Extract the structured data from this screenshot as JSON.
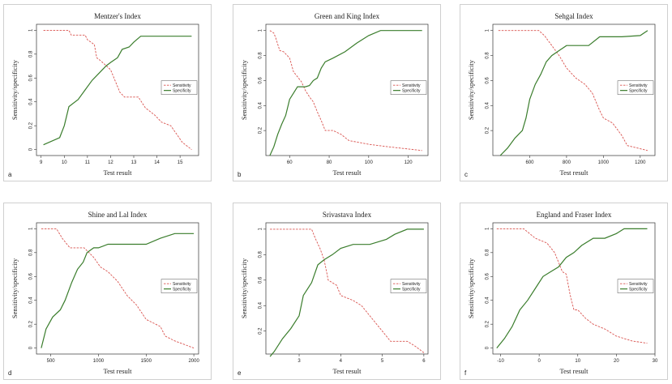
{
  "legend": {
    "sensitivity": "Sensitivity",
    "specificity": "Specificity"
  },
  "colors": {
    "sensitivity": "#d9534f",
    "specificity": "#3a7d2c"
  },
  "chart_data": [
    {
      "type": "line",
      "letter": "a",
      "title": "Mentzer's Index",
      "xlabel": "Test result",
      "ylabel": "Sensitivity/specificity",
      "xlim": [
        8.8,
        15.8
      ],
      "ylim": [
        -0.05,
        1.05
      ],
      "xticks": [
        9,
        10,
        11,
        12,
        13,
        14,
        15
      ],
      "yticks": [
        0,
        0.2,
        0.4,
        0.6,
        0.8,
        1
      ],
      "series": [
        {
          "name": "Sensitivity",
          "x": [
            9.1,
            10.2,
            10.3,
            10.9,
            11.0,
            11.3,
            11.4,
            11.6,
            12.0,
            12.4,
            12.6,
            13.2,
            13.5,
            13.9,
            14.2,
            14.6,
            15.1,
            15.5
          ],
          "y": [
            1.0,
            1.0,
            0.96,
            0.96,
            0.92,
            0.88,
            0.77,
            0.74,
            0.67,
            0.48,
            0.44,
            0.44,
            0.35,
            0.29,
            0.23,
            0.2,
            0.06,
            0.0
          ]
        },
        {
          "name": "Specificity",
          "x": [
            9.1,
            9.8,
            10.0,
            10.2,
            10.6,
            10.9,
            11.2,
            11.5,
            11.8,
            12.0,
            12.3,
            12.5,
            12.8,
            13.0,
            13.3,
            13.8,
            14.5,
            15.5
          ],
          "y": [
            0.04,
            0.1,
            0.2,
            0.36,
            0.42,
            0.5,
            0.58,
            0.64,
            0.7,
            0.73,
            0.77,
            0.84,
            0.86,
            0.9,
            0.95,
            0.95,
            0.95,
            0.95
          ]
        }
      ]
    },
    {
      "type": "line",
      "letter": "b",
      "title": "Green and King Index",
      "xlabel": "Test result",
      "ylabel": "Sensitivity/specificity",
      "xlim": [
        48,
        130
      ],
      "ylim": [
        0.0,
        1.05
      ],
      "xticks": [
        60,
        80,
        100,
        120
      ],
      "yticks": [
        0.2,
        0.4,
        0.6,
        0.8,
        1
      ],
      "series": [
        {
          "name": "Sensitivity",
          "x": [
            50,
            52,
            53,
            55,
            57,
            60,
            62,
            64,
            66,
            68,
            70,
            72,
            74,
            76,
            78,
            82,
            86,
            90,
            100,
            110,
            127
          ],
          "y": [
            1.0,
            0.98,
            0.94,
            0.84,
            0.83,
            0.78,
            0.67,
            0.63,
            0.59,
            0.52,
            0.47,
            0.43,
            0.35,
            0.28,
            0.2,
            0.2,
            0.17,
            0.12,
            0.09,
            0.07,
            0.04
          ]
        },
        {
          "name": "Specificity",
          "x": [
            50,
            52,
            54,
            56,
            58,
            60,
            62,
            64,
            66,
            68,
            70,
            72,
            74,
            76,
            78,
            82,
            88,
            94,
            100,
            106,
            127
          ],
          "y": [
            0.0,
            0.07,
            0.17,
            0.25,
            0.32,
            0.45,
            0.5,
            0.55,
            0.55,
            0.55,
            0.56,
            0.6,
            0.62,
            0.7,
            0.75,
            0.78,
            0.83,
            0.9,
            0.96,
            1.0,
            1.0
          ]
        }
      ]
    },
    {
      "type": "line",
      "letter": "c",
      "title": "Sehgal Index",
      "xlabel": "Test result",
      "ylabel": "Sensitivity/specificity",
      "xlim": [
        400,
        1280
      ],
      "ylim": [
        0.0,
        1.05
      ],
      "xticks": [
        600,
        800,
        1000,
        1200
      ],
      "yticks": [
        0.2,
        0.4,
        0.6,
        0.8,
        1
      ],
      "series": [
        {
          "name": "Sensitivity",
          "x": [
            430,
            650,
            680,
            700,
            730,
            760,
            800,
            850,
            900,
            940,
            980,
            1000,
            1050,
            1100,
            1130,
            1240
          ],
          "y": [
            1.0,
            1.0,
            0.96,
            0.92,
            0.86,
            0.8,
            0.7,
            0.62,
            0.57,
            0.5,
            0.36,
            0.3,
            0.26,
            0.16,
            0.08,
            0.04
          ]
        },
        {
          "name": "Specificity",
          "x": [
            440,
            480,
            520,
            560,
            580,
            600,
            630,
            660,
            690,
            720,
            760,
            800,
            860,
            920,
            980,
            1100,
            1200,
            1240
          ],
          "y": [
            0.0,
            0.06,
            0.14,
            0.2,
            0.3,
            0.45,
            0.57,
            0.65,
            0.75,
            0.8,
            0.84,
            0.88,
            0.88,
            0.88,
            0.95,
            0.95,
            0.96,
            1.0
          ]
        }
      ]
    },
    {
      "type": "line",
      "letter": "d",
      "title": "Shine and Lal Index",
      "xlabel": "Test result",
      "ylabel": "Sensitivity/specificity",
      "xlim": [
        350,
        2050
      ],
      "ylim": [
        -0.05,
        1.05
      ],
      "xticks": [
        500,
        1000,
        1500,
        2000
      ],
      "yticks": [
        0,
        0.2,
        0.4,
        0.6,
        0.8,
        1
      ],
      "series": [
        {
          "name": "Sensitivity",
          "x": [
            400,
            560,
            620,
            700,
            850,
            950,
            1020,
            1100,
            1200,
            1300,
            1400,
            1500,
            1600,
            1650,
            1700,
            1800,
            1900,
            2000
          ],
          "y": [
            1.0,
            1.0,
            0.92,
            0.84,
            0.84,
            0.76,
            0.68,
            0.64,
            0.56,
            0.44,
            0.36,
            0.24,
            0.2,
            0.18,
            0.1,
            0.06,
            0.03,
            0.0
          ]
        },
        {
          "name": "Specificity",
          "x": [
            400,
            450,
            520,
            600,
            650,
            720,
            780,
            840,
            880,
            950,
            1000,
            1100,
            1300,
            1500,
            1650,
            1800,
            1900,
            2000
          ],
          "y": [
            0.0,
            0.16,
            0.26,
            0.32,
            0.4,
            0.55,
            0.66,
            0.72,
            0.8,
            0.84,
            0.84,
            0.87,
            0.87,
            0.87,
            0.92,
            0.96,
            0.96,
            0.96
          ]
        }
      ]
    },
    {
      "type": "line",
      "letter": "e",
      "title": "Srivastava Index",
      "xlabel": "Test result",
      "ylabel": "Sensitivity/specificity",
      "xlim": [
        2.2,
        6.1
      ],
      "ylim": [
        0.02,
        1.05
      ],
      "xticks": [
        3,
        4,
        5,
        6
      ],
      "yticks": [
        0.2,
        0.4,
        0.6,
        0.8,
        1
      ],
      "series": [
        {
          "name": "Sensitivity",
          "x": [
            2.3,
            3.3,
            3.4,
            3.5,
            3.6,
            3.65,
            3.7,
            3.9,
            4.0,
            4.3,
            4.5,
            4.7,
            5.0,
            5.2,
            5.6,
            5.8,
            6.0
          ],
          "y": [
            1.0,
            1.0,
            0.92,
            0.85,
            0.76,
            0.68,
            0.6,
            0.56,
            0.48,
            0.44,
            0.4,
            0.32,
            0.2,
            0.12,
            0.12,
            0.08,
            0.03
          ]
        },
        {
          "name": "Specificity",
          "x": [
            2.3,
            2.4,
            2.6,
            2.8,
            3.0,
            3.1,
            3.3,
            3.45,
            3.6,
            3.8,
            4.0,
            4.3,
            4.7,
            5.1,
            5.3,
            5.6,
            6.0
          ],
          "y": [
            0.0,
            0.04,
            0.14,
            0.22,
            0.32,
            0.48,
            0.58,
            0.72,
            0.76,
            0.8,
            0.85,
            0.88,
            0.88,
            0.92,
            0.96,
            1.0,
            1.0
          ]
        }
      ]
    },
    {
      "type": "line",
      "letter": "f",
      "title": "England and Fraser Index",
      "xlabel": "Test result",
      "ylabel": "Sensitivity/specificity",
      "xlim": [
        -12,
        30
      ],
      "ylim": [
        -0.05,
        1.05
      ],
      "xticks": [
        -10,
        0,
        10,
        20,
        30
      ],
      "yticks": [
        0,
        0.2,
        0.4,
        0.6,
        0.8,
        1
      ],
      "series": [
        {
          "name": "Sensitivity",
          "x": [
            -11,
            -4,
            -1,
            2,
            4,
            5,
            6,
            7,
            8,
            9,
            10,
            12,
            14,
            17,
            20,
            24,
            28
          ],
          "y": [
            1.0,
            1.0,
            0.92,
            0.88,
            0.8,
            0.72,
            0.64,
            0.62,
            0.45,
            0.32,
            0.32,
            0.25,
            0.2,
            0.16,
            0.1,
            0.06,
            0.04
          ]
        },
        {
          "name": "Specificity",
          "x": [
            -11,
            -9,
            -7,
            -5,
            -3,
            -1,
            1,
            3,
            5,
            7,
            9,
            11,
            14,
            17,
            20,
            22,
            28
          ],
          "y": [
            0.0,
            0.08,
            0.18,
            0.32,
            0.4,
            0.5,
            0.6,
            0.64,
            0.68,
            0.76,
            0.8,
            0.86,
            0.92,
            0.92,
            0.96,
            1.0,
            1.0
          ]
        }
      ]
    }
  ]
}
